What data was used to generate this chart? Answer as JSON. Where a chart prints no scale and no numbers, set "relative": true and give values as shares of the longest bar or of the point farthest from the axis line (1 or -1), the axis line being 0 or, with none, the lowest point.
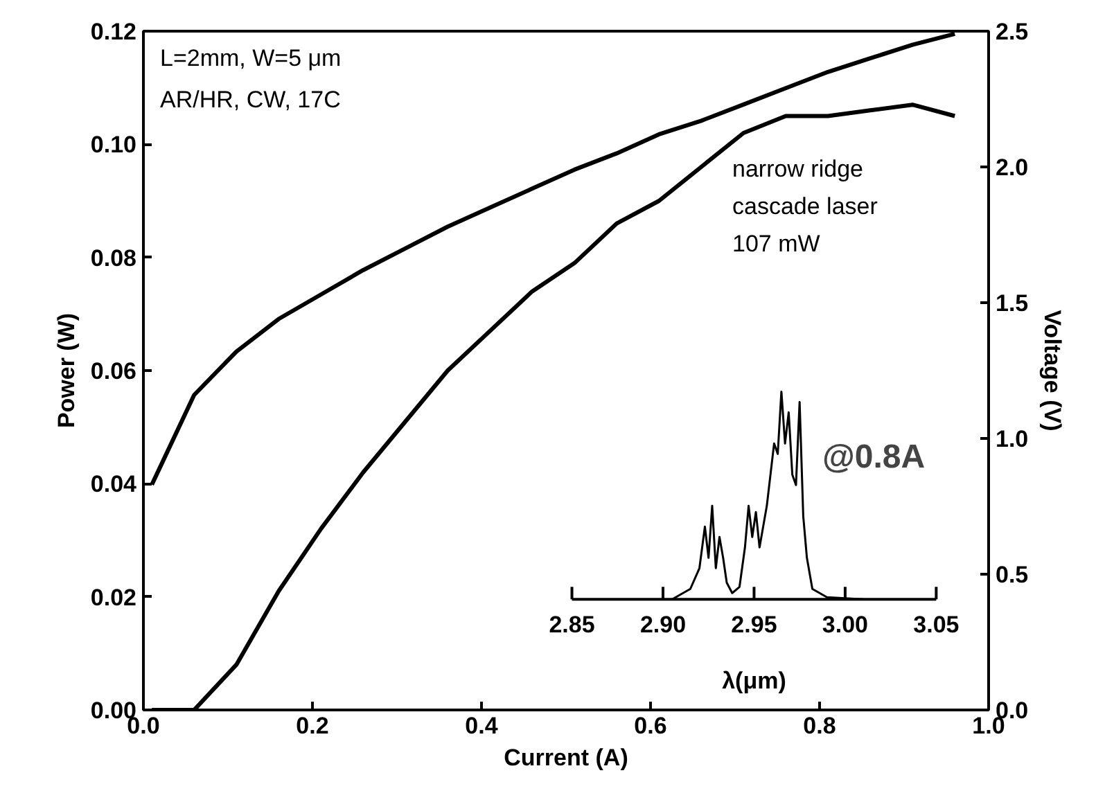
{
  "chart_data": [
    {
      "type": "line",
      "xlabel": "Current (A)",
      "ylabel": "Power (W)",
      "y2label": "Voltage (V)",
      "x": [
        0.01,
        0.06,
        0.11,
        0.16,
        0.21,
        0.26,
        0.31,
        0.36,
        0.41,
        0.46,
        0.51,
        0.56,
        0.61,
        0.66,
        0.71,
        0.76,
        0.81,
        0.86,
        0.91,
        0.96
      ],
      "series": [
        {
          "color": "#000000",
          "values": [
            0,
            0,
            0.008,
            0.021,
            0.032,
            0.042,
            0.051,
            0.06,
            0.067,
            0.074,
            0.079,
            0.086,
            0.09,
            0.096,
            0.102,
            0.105,
            0.105,
            0.106,
            0.107,
            0.105
          ]
        },
        {
          "color": "#000000",
          "axis": "y2",
          "values": [
            0.83,
            1.16,
            1.32,
            1.44,
            1.53,
            1.62,
            1.7,
            1.78,
            1.85,
            1.92,
            1.99,
            2.05,
            2.12,
            2.17,
            2.23,
            2.29,
            2.35,
            2.4,
            2.45,
            2.49
          ]
        }
      ],
      "xlim": [
        0,
        1
      ],
      "ylim": [
        0,
        0.12
      ],
      "y2lim": [
        0,
        2.5
      ],
      "xticks": [
        {
          "value": 0,
          "label": "0.0"
        },
        0.2,
        0.4,
        0.6,
        0.8,
        {
          "value": 1,
          "label": "1.0"
        }
      ],
      "yticks": [
        {
          "value": 0,
          "label": "0.00"
        },
        0.02,
        0.04,
        0.06,
        0.08,
        {
          "value": 0.1,
          "label": "0.10"
        },
        0.12
      ],
      "y2ticks": [
        {
          "value": 0,
          "label": "0.0"
        },
        0.5,
        {
          "value": 1,
          "label": "1.0"
        },
        1.5,
        {
          "value": 2,
          "label": "2.0"
        },
        2.5
      ],
      "grid": false,
      "line_style": "solid",
      "annotations": [
        "L=2mm, W=5 μm",
        "AR/HR, CW, 17C",
        "narrow ridge",
        "cascade laser",
        "107 mW"
      ]
    },
    {
      "type": "line",
      "relative": true,
      "xlabel": "λ(μm)",
      "x": [
        2.905,
        2.915,
        2.92,
        2.923,
        2.925,
        2.927,
        2.929,
        2.931,
        2.933,
        2.935,
        2.938,
        2.942,
        2.945,
        2.947,
        2.949,
        2.951,
        2.953,
        2.955,
        2.957,
        2.959,
        2.961,
        2.963,
        2.965,
        2.967,
        2.969,
        2.971,
        2.973,
        2.975,
        2.977,
        2.979,
        2.982,
        2.99,
        3.01
      ],
      "series": [
        {
          "color": "#000000",
          "values": [
            0,
            0.05,
            0.15,
            0.35,
            0.2,
            0.45,
            0.15,
            0.3,
            0.2,
            0.08,
            0.03,
            0.06,
            0.25,
            0.45,
            0.3,
            0.42,
            0.25,
            0.35,
            0.45,
            0.6,
            0.75,
            0.7,
            1.0,
            0.75,
            0.9,
            0.6,
            0.55,
            0.95,
            0.4,
            0.2,
            0.05,
            0.01,
            0
          ]
        }
      ],
      "xlim": [
        2.85,
        3.05
      ],
      "xticks": [
        2.85,
        {
          "value": 2.9,
          "label": "2.90"
        },
        2.95,
        {
          "value": 3.0,
          "label": "3.00"
        },
        3.05
      ],
      "annotations": [
        "@0.8A"
      ]
    }
  ]
}
